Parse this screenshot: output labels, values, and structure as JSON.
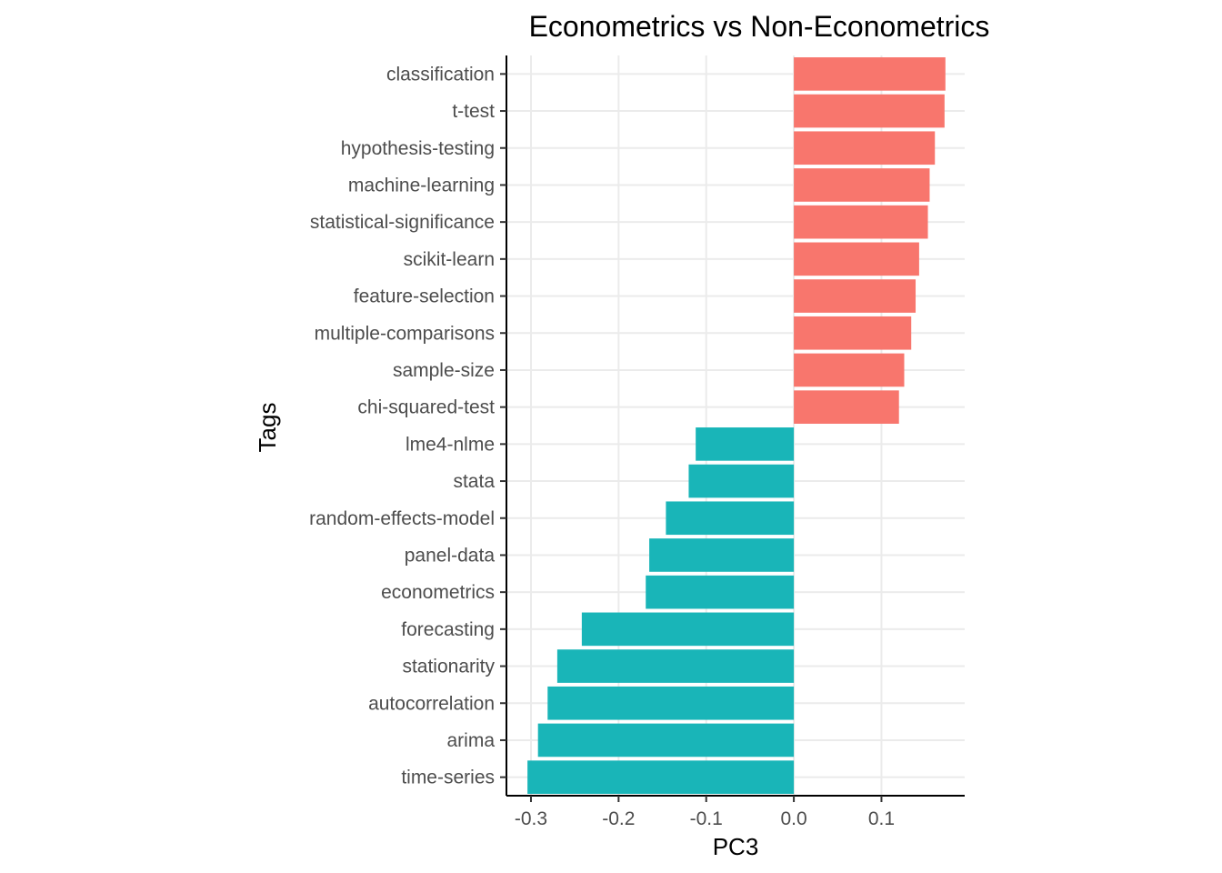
{
  "chart_data": {
    "type": "bar",
    "orientation": "horizontal",
    "title": "Econometrics vs Non-Econometrics",
    "xlabel": "PC3",
    "ylabel": "Tags",
    "xlim": [
      -0.328,
      0.195
    ],
    "xticks": [
      -0.3,
      -0.2,
      -0.1,
      0.0,
      0.1
    ],
    "xtick_labels": [
      "-0.3",
      "-0.2",
      "-0.1",
      "0.0",
      "0.1"
    ],
    "grid": true,
    "legend": "none",
    "colors": {
      "positive": "#f8766d",
      "negative": "#19b5b8"
    },
    "categories": [
      "classification",
      "t-test",
      "hypothesis-testing",
      "machine-learning",
      "statistical-significance",
      "scikit-learn",
      "feature-selection",
      "multiple-comparisons",
      "sample-size",
      "chi-squared-test",
      "lme4-nlme",
      "stata",
      "random-effects-model",
      "panel-data",
      "econometrics",
      "forecasting",
      "stationarity",
      "autocorrelation",
      "arima",
      "time-series"
    ],
    "values": [
      0.173,
      0.172,
      0.161,
      0.155,
      0.153,
      0.143,
      0.139,
      0.134,
      0.126,
      0.12,
      -0.112,
      -0.12,
      -0.146,
      -0.165,
      -0.169,
      -0.242,
      -0.27,
      -0.281,
      -0.292,
      -0.304
    ]
  }
}
